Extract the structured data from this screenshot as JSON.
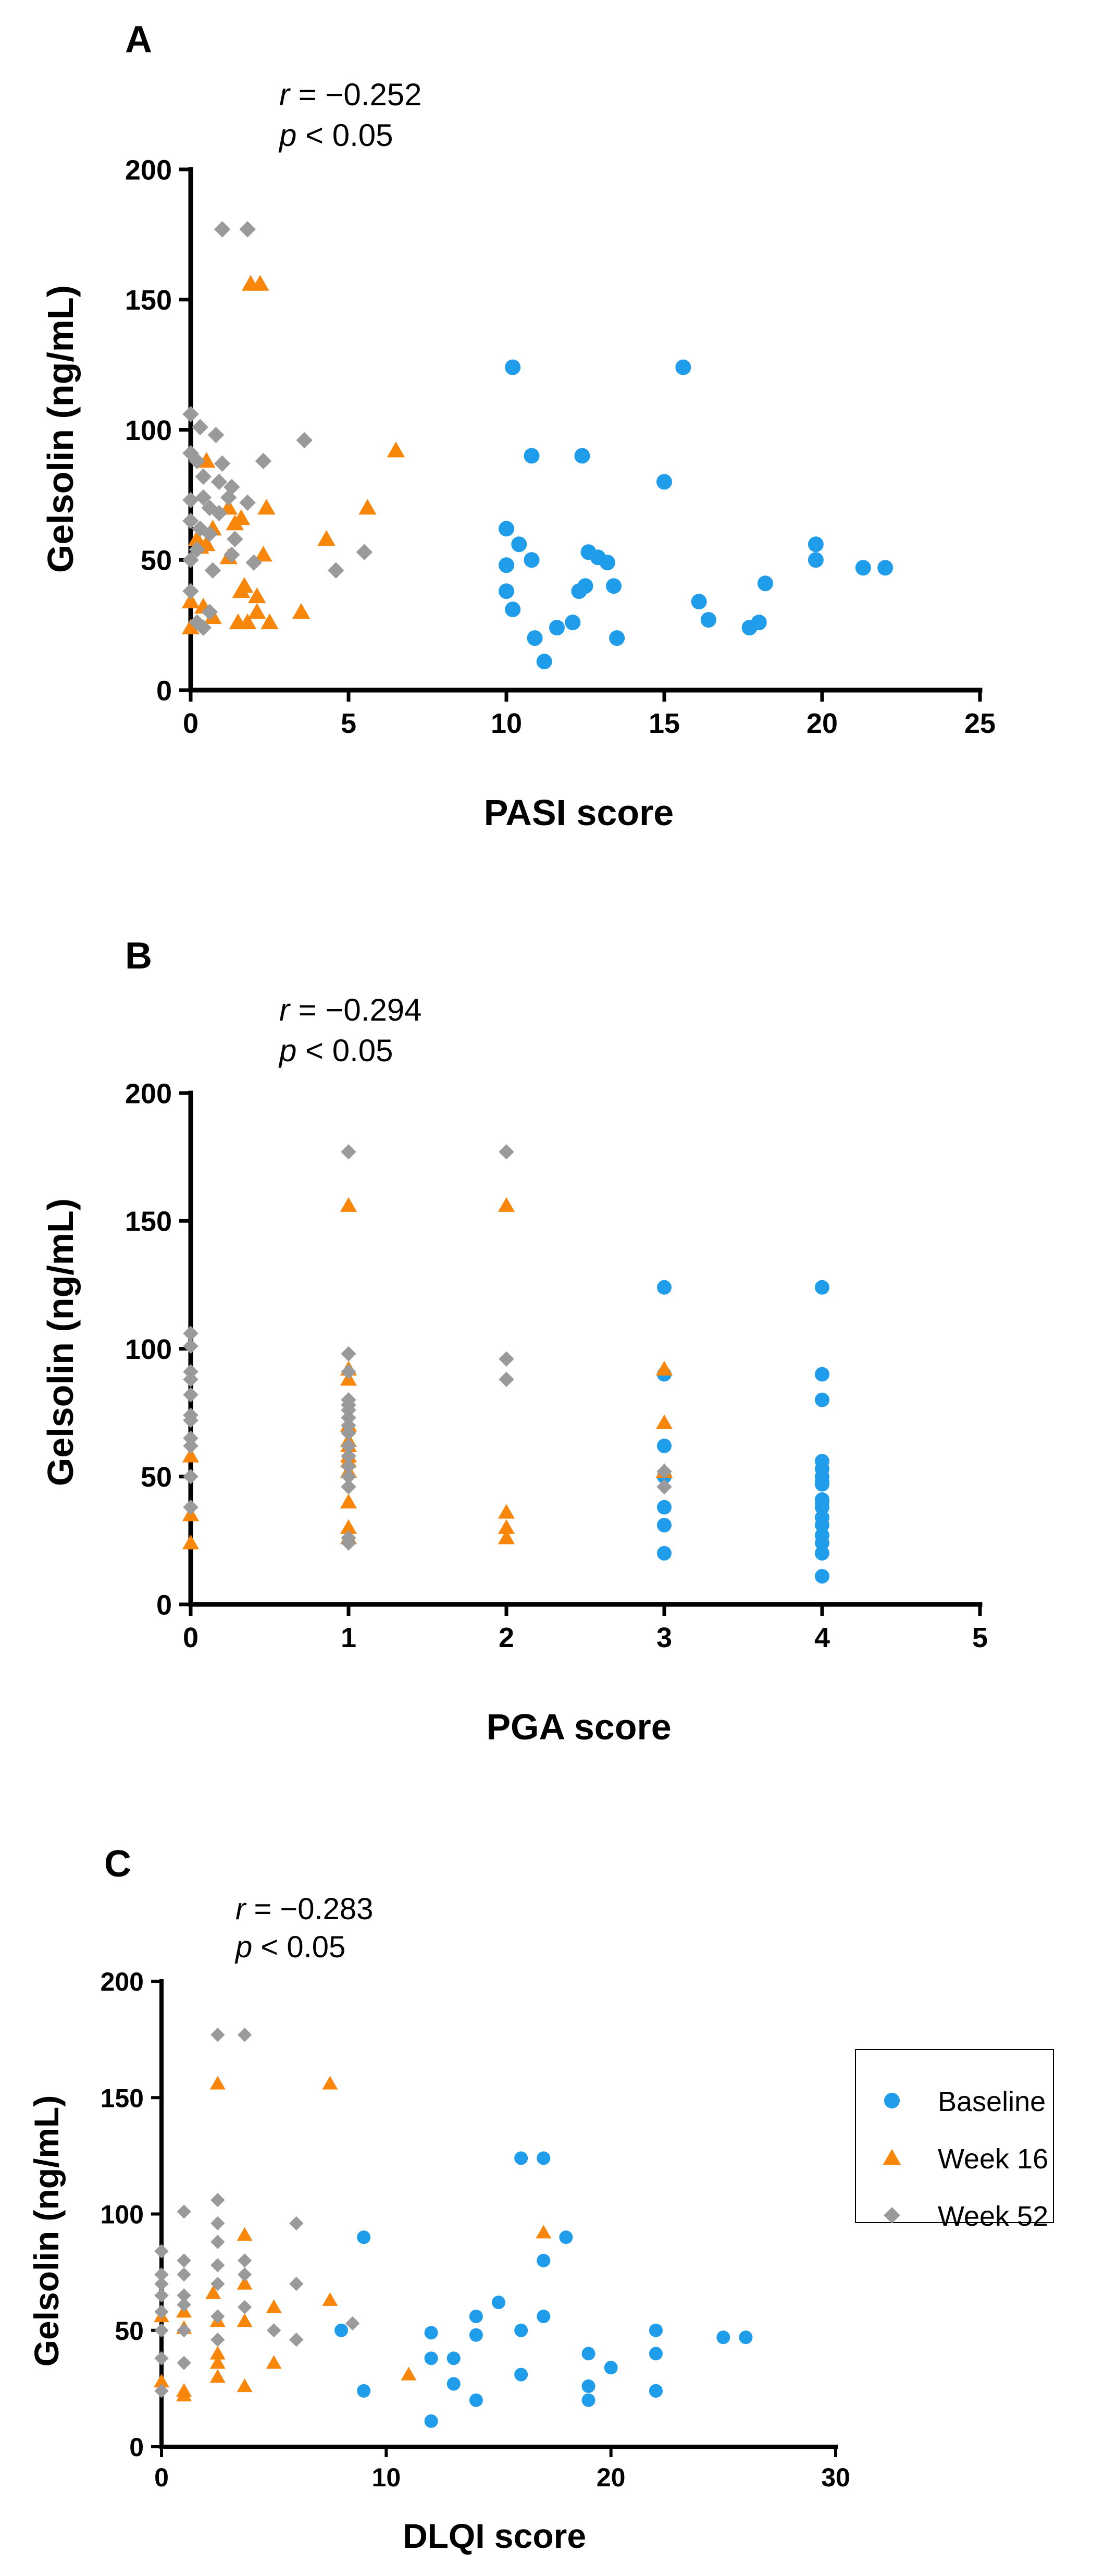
{
  "legend": {
    "items": [
      {
        "name": "Baseline",
        "color": "#1f9cea",
        "marker": "circle"
      },
      {
        "name": "Week 16",
        "color": "#f7860a",
        "marker": "triangle"
      },
      {
        "name": "Week 52",
        "color": "#9a9a9a",
        "marker": "diamond"
      }
    ],
    "placement": "right of panel C"
  },
  "chart_data": [
    {
      "type": "scatter",
      "panel": "A",
      "stat_r_symbol": "r",
      "stat_r_value": " = −0.252",
      "stat_p_symbol": "p",
      "stat_p_value": " < 0.05",
      "xlabel": "PASI score",
      "ylabel": "Gelsolin (ng/mL)",
      "xlim": [
        0,
        25
      ],
      "ylim": [
        0,
        200
      ],
      "xticks": [
        0,
        5,
        10,
        15,
        20,
        25
      ],
      "yticks": [
        0,
        50,
        100,
        150,
        200
      ],
      "series": [
        {
          "name": "Baseline",
          "points": [
            [
              10.2,
              124
            ],
            [
              15.6,
              124
            ],
            [
              10.8,
              90
            ],
            [
              12.4,
              90
            ],
            [
              15,
              80
            ],
            [
              10,
              62
            ],
            [
              10.4,
              56
            ],
            [
              19.8,
              56
            ],
            [
              12.6,
              53
            ],
            [
              12.9,
              51
            ],
            [
              13.2,
              49
            ],
            [
              10,
              48
            ],
            [
              10.8,
              50
            ],
            [
              19.8,
              50
            ],
            [
              21.3,
              47
            ],
            [
              22,
              47
            ],
            [
              18.2,
              41
            ],
            [
              12.5,
              40
            ],
            [
              13.4,
              40
            ],
            [
              12.3,
              38
            ],
            [
              10,
              38
            ],
            [
              16.1,
              34
            ],
            [
              10.2,
              31
            ],
            [
              16.4,
              27
            ],
            [
              18,
              26
            ],
            [
              17.7,
              24
            ],
            [
              12.1,
              26
            ],
            [
              11.6,
              24
            ],
            [
              10.9,
              20
            ],
            [
              13.5,
              20
            ],
            [
              11.2,
              11
            ]
          ]
        },
        {
          "name": "Week 16",
          "points": [
            [
              1.9,
              156
            ],
            [
              2.2,
              156
            ],
            [
              6.5,
              92
            ],
            [
              0.5,
              88
            ],
            [
              1.2,
              70
            ],
            [
              2.4,
              70
            ],
            [
              5.6,
              70
            ],
            [
              1.4,
              64
            ],
            [
              1.6,
              66
            ],
            [
              0.7,
              62
            ],
            [
              0.2,
              58
            ],
            [
              0.3,
              55
            ],
            [
              0.5,
              56
            ],
            [
              4.3,
              58
            ],
            [
              1.2,
              51
            ],
            [
              2.3,
              52
            ],
            [
              1.7,
              40
            ],
            [
              2.1,
              36
            ],
            [
              1.6,
              38
            ],
            [
              0,
              34
            ],
            [
              0.4,
              32
            ],
            [
              3.5,
              30
            ],
            [
              2.1,
              30
            ],
            [
              0.7,
              28
            ],
            [
              1.5,
              26
            ],
            [
              1.8,
              26
            ],
            [
              2.5,
              26
            ],
            [
              0,
              24
            ]
          ]
        },
        {
          "name": "Week 52",
          "points": [
            [
              1,
              177
            ],
            [
              1.8,
              177
            ],
            [
              0,
              106
            ],
            [
              0.3,
              101
            ],
            [
              0.8,
              98
            ],
            [
              3.6,
              96
            ],
            [
              0,
              91
            ],
            [
              0.2,
              88
            ],
            [
              1,
              87
            ],
            [
              2.3,
              88
            ],
            [
              0.4,
              82
            ],
            [
              0.9,
              80
            ],
            [
              1.3,
              78
            ],
            [
              0.4,
              74
            ],
            [
              1.2,
              74
            ],
            [
              1.8,
              72
            ],
            [
              0,
              73
            ],
            [
              0.6,
              70
            ],
            [
              0.9,
              68
            ],
            [
              0,
              65
            ],
            [
              0.3,
              62
            ],
            [
              0.6,
              60
            ],
            [
              1.4,
              58
            ],
            [
              0.2,
              54
            ],
            [
              5.5,
              53
            ],
            [
              1.3,
              52
            ],
            [
              0,
              50
            ],
            [
              2,
              49
            ],
            [
              4.6,
              46
            ],
            [
              0.7,
              46
            ],
            [
              0,
              38
            ],
            [
              0.6,
              30
            ],
            [
              0.2,
              26
            ],
            [
              0.4,
              24
            ]
          ]
        }
      ]
    },
    {
      "type": "scatter",
      "panel": "B",
      "stat_r_symbol": "r",
      "stat_r_value": " = −0.294",
      "stat_p_symbol": "p",
      "stat_p_value": " < 0.05",
      "xlabel": "PGA score",
      "ylabel": "Gelsolin (ng/mL)",
      "xlim": [
        0,
        5
      ],
      "ylim": [
        0,
        200
      ],
      "xticks": [
        0,
        1,
        2,
        3,
        4,
        5
      ],
      "yticks": [
        0,
        50,
        100,
        150,
        200
      ],
      "series": [
        {
          "name": "Baseline",
          "points": [
            [
              3,
              124
            ],
            [
              3,
              90
            ],
            [
              3,
              62
            ],
            [
              3,
              50
            ],
            [
              3,
              38
            ],
            [
              3,
              31
            ],
            [
              3,
              20
            ],
            [
              4,
              124
            ],
            [
              4,
              90
            ],
            [
              4,
              80
            ],
            [
              4,
              56
            ],
            [
              4,
              53
            ],
            [
              4,
              50
            ],
            [
              4,
              48
            ],
            [
              4,
              47
            ],
            [
              4,
              41
            ],
            [
              4,
              40
            ],
            [
              4,
              38
            ],
            [
              4,
              34
            ],
            [
              4,
              31
            ],
            [
              4,
              27
            ],
            [
              4,
              24
            ],
            [
              4,
              20
            ],
            [
              4,
              11
            ]
          ]
        },
        {
          "name": "Week 16",
          "points": [
            [
              0,
              58
            ],
            [
              0,
              35
            ],
            [
              0,
              24
            ],
            [
              1,
              156
            ],
            [
              1,
              92
            ],
            [
              1,
              88
            ],
            [
              1,
              70
            ],
            [
              1,
              64
            ],
            [
              1,
              62
            ],
            [
              1,
              58
            ],
            [
              1,
              56
            ],
            [
              1,
              52
            ],
            [
              1,
              40
            ],
            [
              1,
              30
            ],
            [
              1,
              26
            ],
            [
              2,
              156
            ],
            [
              2,
              36
            ],
            [
              2,
              30
            ],
            [
              2,
              26
            ],
            [
              3,
              92
            ],
            [
              3,
              71
            ],
            [
              3,
              52
            ]
          ]
        },
        {
          "name": "Week 52",
          "points": [
            [
              0,
              106
            ],
            [
              0,
              101
            ],
            [
              0,
              91
            ],
            [
              0,
              88
            ],
            [
              0,
              82
            ],
            [
              0,
              74
            ],
            [
              0,
              72
            ],
            [
              0,
              65
            ],
            [
              0,
              62
            ],
            [
              0,
              50
            ],
            [
              0,
              38
            ],
            [
              1,
              177
            ],
            [
              1,
              98
            ],
            [
              1,
              91
            ],
            [
              1,
              80
            ],
            [
              1,
              78
            ],
            [
              1,
              76
            ],
            [
              1,
              73
            ],
            [
              1,
              70
            ],
            [
              1,
              67
            ],
            [
              1,
              62
            ],
            [
              1,
              58
            ],
            [
              1,
              54
            ],
            [
              1,
              50
            ],
            [
              1,
              46
            ],
            [
              1,
              26
            ],
            [
              1,
              24
            ],
            [
              2,
              177
            ],
            [
              2,
              96
            ],
            [
              2,
              88
            ],
            [
              3,
              52
            ],
            [
              3,
              46
            ]
          ]
        }
      ]
    },
    {
      "type": "scatter",
      "panel": "C",
      "stat_r_symbol": "r",
      "stat_r_value": " = −0.283",
      "stat_p_symbol": "p",
      "stat_p_value": " < 0.05",
      "xlabel": "DLQI score",
      "ylabel": "Gelsolin (ng/mL)",
      "xlim": [
        0,
        30
      ],
      "ylim": [
        0,
        200
      ],
      "xticks": [
        0,
        10,
        20,
        30
      ],
      "yticks": [
        0,
        50,
        100,
        150,
        200
      ],
      "series": [
        {
          "name": "Baseline",
          "points": [
            [
              16,
              124
            ],
            [
              17,
              124
            ],
            [
              9,
              90
            ],
            [
              18,
              90
            ],
            [
              17,
              80
            ],
            [
              15,
              62
            ],
            [
              14,
              56
            ],
            [
              17,
              56
            ],
            [
              16,
              50
            ],
            [
              22,
              50
            ],
            [
              8,
              50
            ],
            [
              12,
              49
            ],
            [
              14,
              48
            ],
            [
              25,
              47
            ],
            [
              26,
              47
            ],
            [
              19,
              40
            ],
            [
              22,
              40
            ],
            [
              12,
              38
            ],
            [
              13,
              38
            ],
            [
              20,
              34
            ],
            [
              16,
              31
            ],
            [
              13,
              27
            ],
            [
              19,
              26
            ],
            [
              22,
              24
            ],
            [
              9,
              24
            ],
            [
              14,
              20
            ],
            [
              19,
              20
            ],
            [
              22,
              24
            ],
            [
              12,
              11
            ]
          ]
        },
        {
          "name": "Week 16",
          "points": [
            [
              2.5,
              156
            ],
            [
              7.5,
              156
            ],
            [
              3.7,
              91
            ],
            [
              17,
              92
            ],
            [
              2.3,
              66
            ],
            [
              3.7,
              70
            ],
            [
              7.5,
              63
            ],
            [
              1,
              58
            ],
            [
              0,
              56
            ],
            [
              5,
              60
            ],
            [
              2.5,
              54
            ],
            [
              3.7,
              54
            ],
            [
              1,
              51
            ],
            [
              2.5,
              40
            ],
            [
              2.5,
              36
            ],
            [
              5,
              36
            ],
            [
              11,
              31
            ],
            [
              0,
              28
            ],
            [
              2.5,
              30
            ],
            [
              1,
              24
            ],
            [
              3.7,
              26
            ],
            [
              1,
              22
            ]
          ]
        },
        {
          "name": "Week 52",
          "points": [
            [
              2.5,
              177
            ],
            [
              3.7,
              177
            ],
            [
              2.5,
              106
            ],
            [
              1,
              101
            ],
            [
              2.5,
              96
            ],
            [
              6,
              96
            ],
            [
              0,
              84
            ],
            [
              0,
              74
            ],
            [
              1,
              80
            ],
            [
              2.5,
              78
            ],
            [
              3.7,
              80
            ],
            [
              3.7,
              74
            ],
            [
              1,
              74
            ],
            [
              2.5,
              88
            ],
            [
              0,
              70
            ],
            [
              2.5,
              70
            ],
            [
              6,
              70
            ],
            [
              0,
              65
            ],
            [
              1,
              65
            ],
            [
              1,
              61
            ],
            [
              3.7,
              60
            ],
            [
              0,
              58
            ],
            [
              2.5,
              56
            ],
            [
              8.5,
              53
            ],
            [
              1,
              50
            ],
            [
              5,
              50
            ],
            [
              0,
              50
            ],
            [
              6,
              46
            ],
            [
              2.5,
              46
            ],
            [
              0,
              38
            ],
            [
              1,
              36
            ],
            [
              0,
              24
            ]
          ]
        }
      ]
    }
  ]
}
